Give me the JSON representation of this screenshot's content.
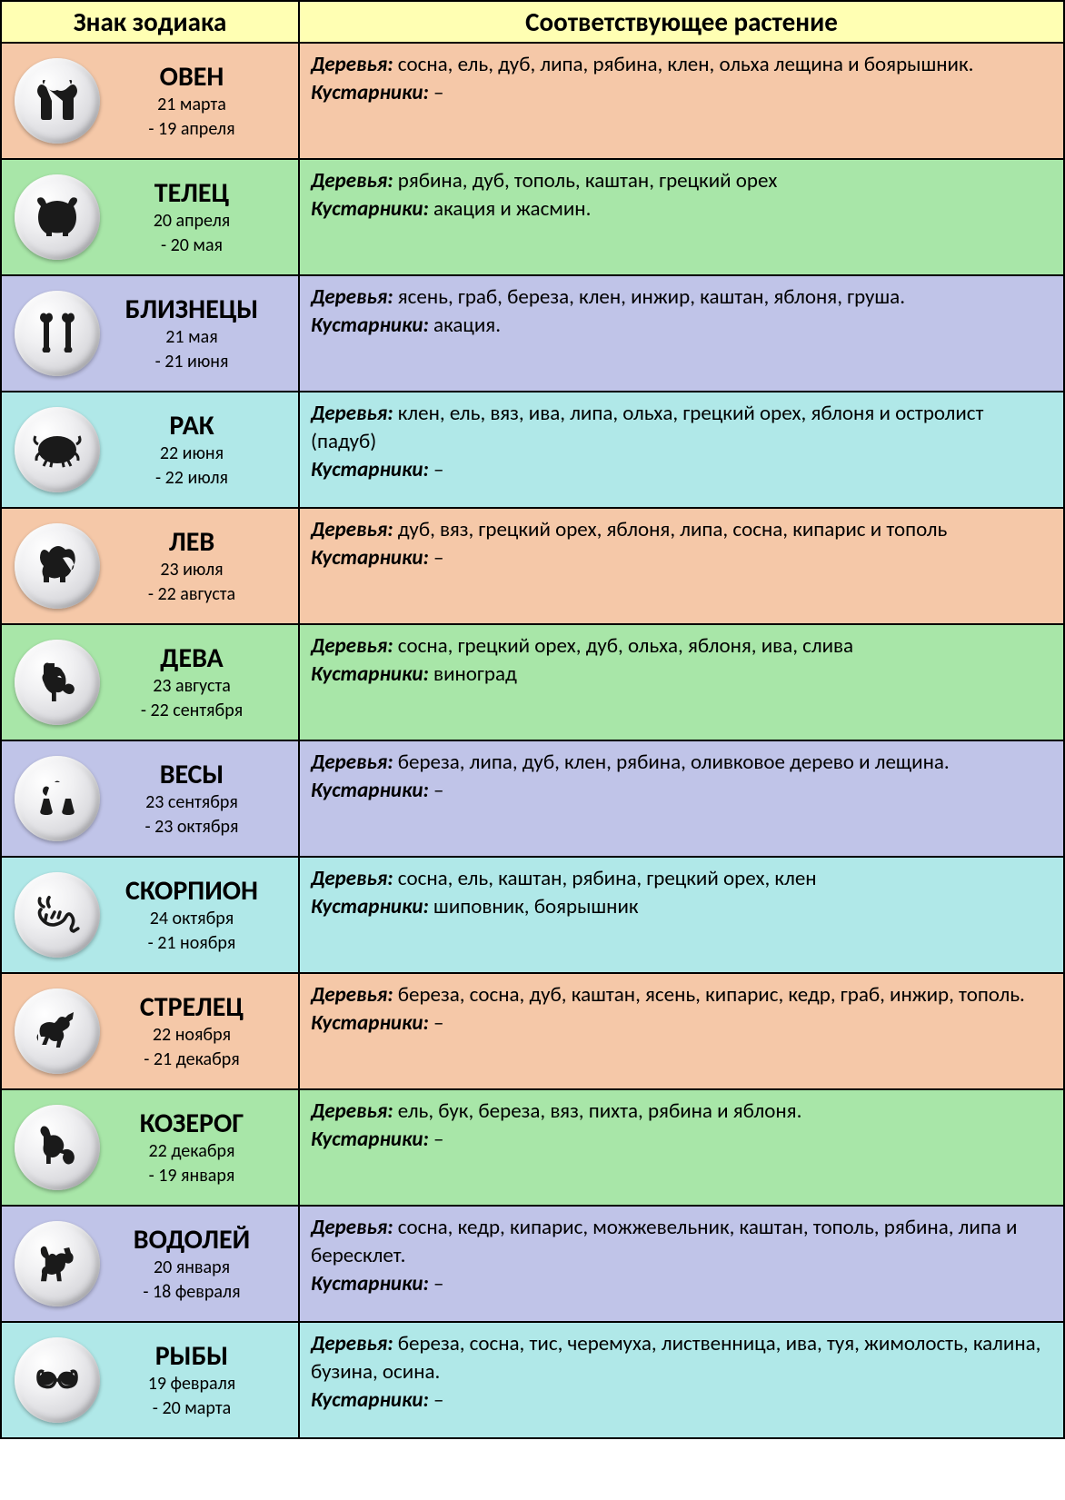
{
  "headers": {
    "sign": "Знак зодиака",
    "plant": "Соответствующее растение"
  },
  "labels": {
    "trees": "Деревья:",
    "shrubs": "Кустарники:"
  },
  "colors": {
    "header_bg": "#ffffb3",
    "peach": "#f5c8a8",
    "green": "#a8e6a8",
    "lilac": "#c0c4e8",
    "cyan": "#b0e8e8",
    "border": "#000000"
  },
  "rows": [
    {
      "icon": "aries",
      "name": "ОВЕН",
      "date1": "21 марта",
      "date2": "- 19 апреля",
      "trees": " сосна, ель, дуб, липа, рябина, клен, ольха лещина и боярышник.",
      "shrubs": " –",
      "bg": "bg-peach"
    },
    {
      "icon": "taurus",
      "name": "ТЕЛЕЦ",
      "date1": "20 апреля",
      "date2": "- 20 мая",
      "trees": " рябина, дуб, тополь, каштан, грецкий орех",
      "shrubs": " акация и жасмин.",
      "bg": "bg-green"
    },
    {
      "icon": "gemini",
      "name": "БЛИЗНЕЦЫ",
      "date1": "21 мая",
      "date2": "- 21 июня",
      "trees": " ясень, граб, береза, клен, инжир, каштан, яблоня, груша.",
      "shrubs": " акация.",
      "bg": "bg-lilac"
    },
    {
      "icon": "cancer",
      "name": "РАК",
      "date1": "22 июня",
      "date2": "- 22 июля",
      "trees": " клен, ель, вяз, ива, липа, ольха, грецкий орех, яблоня и остролист (падуб)",
      "shrubs": " –",
      "bg": "bg-cyan"
    },
    {
      "icon": "leo",
      "name": "ЛЕВ",
      "date1": "23 июля",
      "date2": "- 22 августа",
      "trees": " дуб, вяз, грецкий орех, яблоня, липа, сосна, кипарис и тополь",
      "shrubs": " –",
      "bg": "bg-peach"
    },
    {
      "icon": "virgo",
      "name": "ДЕВА",
      "date1": "23 августа",
      "date2": "- 22 сентября",
      "trees": " сосна, грецкий орех, дуб, ольха, яблоня, ива, слива",
      "shrubs": " виноград",
      "bg": "bg-green"
    },
    {
      "icon": "libra",
      "name": "ВЕСЫ",
      "date1": "23 сентября",
      "date2": "- 23 октября",
      "trees": " береза, липа, дуб, клен, рябина, оливковое дерево и лещина.",
      "shrubs": " –",
      "bg": "bg-lilac"
    },
    {
      "icon": "scorpio",
      "name": "СКОРПИОН",
      "date1": "24 октября",
      "date2": "- 21 ноября",
      "trees": " сосна, ель, каштан, рябина, грецкий орех, клен",
      "shrubs": " шиповник, боярышник",
      "bg": "bg-cyan"
    },
    {
      "icon": "sagittarius",
      "name": "СТРЕЛЕЦ",
      "date1": "22 ноября",
      "date2": "- 21 декабря",
      "trees": " береза, сосна, дуб, каштан, ясень, кипарис, кедр, граб, инжир, тополь.",
      "shrubs": " –",
      "bg": "bg-peach"
    },
    {
      "icon": "capricorn",
      "name": "КОЗЕРОГ",
      "date1": "22 декабря",
      "date2": "- 19 января",
      "trees": " ель, бук, береза, вяз, пихта, рябина и яблоня.",
      "shrubs": " –",
      "bg": "bg-green"
    },
    {
      "icon": "aquarius",
      "name": "ВОДОЛЕЙ",
      "date1": "20 января",
      "date2": "- 18 февраля",
      "trees": " сосна, кедр, кипарис, можжевельник, каштан, тополь, рябина, липа и бересклет.",
      "shrubs": " –",
      "bg": "bg-lilac"
    },
    {
      "icon": "pisces",
      "name": "РЫБЫ",
      "date1": "19 февраля",
      "date2": "- 20 марта",
      "trees": " береза, сосна, тис, черемуха, лиственница, ива, туя, жимолость, калина, бузина, осина.",
      "shrubs": " –",
      "bg": "bg-cyan"
    }
  ]
}
